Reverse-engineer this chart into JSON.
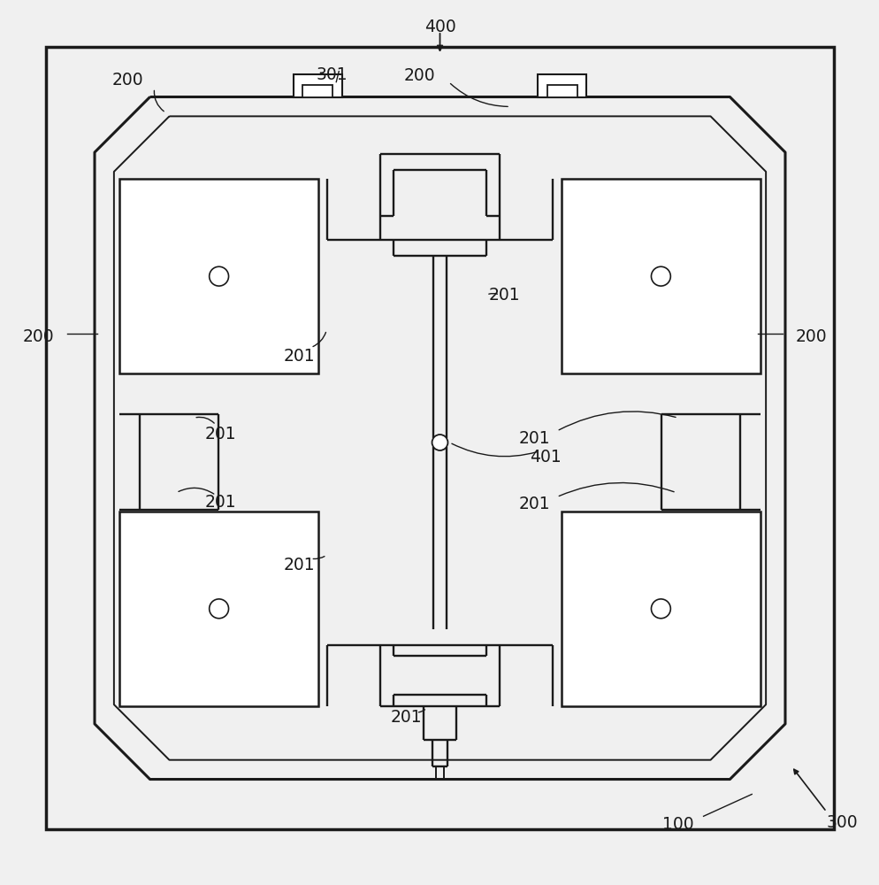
{
  "bg": "#f0f0f0",
  "lc": "#1a1a1a",
  "lw_frame": 2.2,
  "lw_inner": 1.4,
  "lw_patch": 1.8,
  "lw_feed": 1.7,
  "lw_label": 1.0,
  "fs": 13.5,
  "fig_w": 9.95,
  "fig_h": 10.0
}
